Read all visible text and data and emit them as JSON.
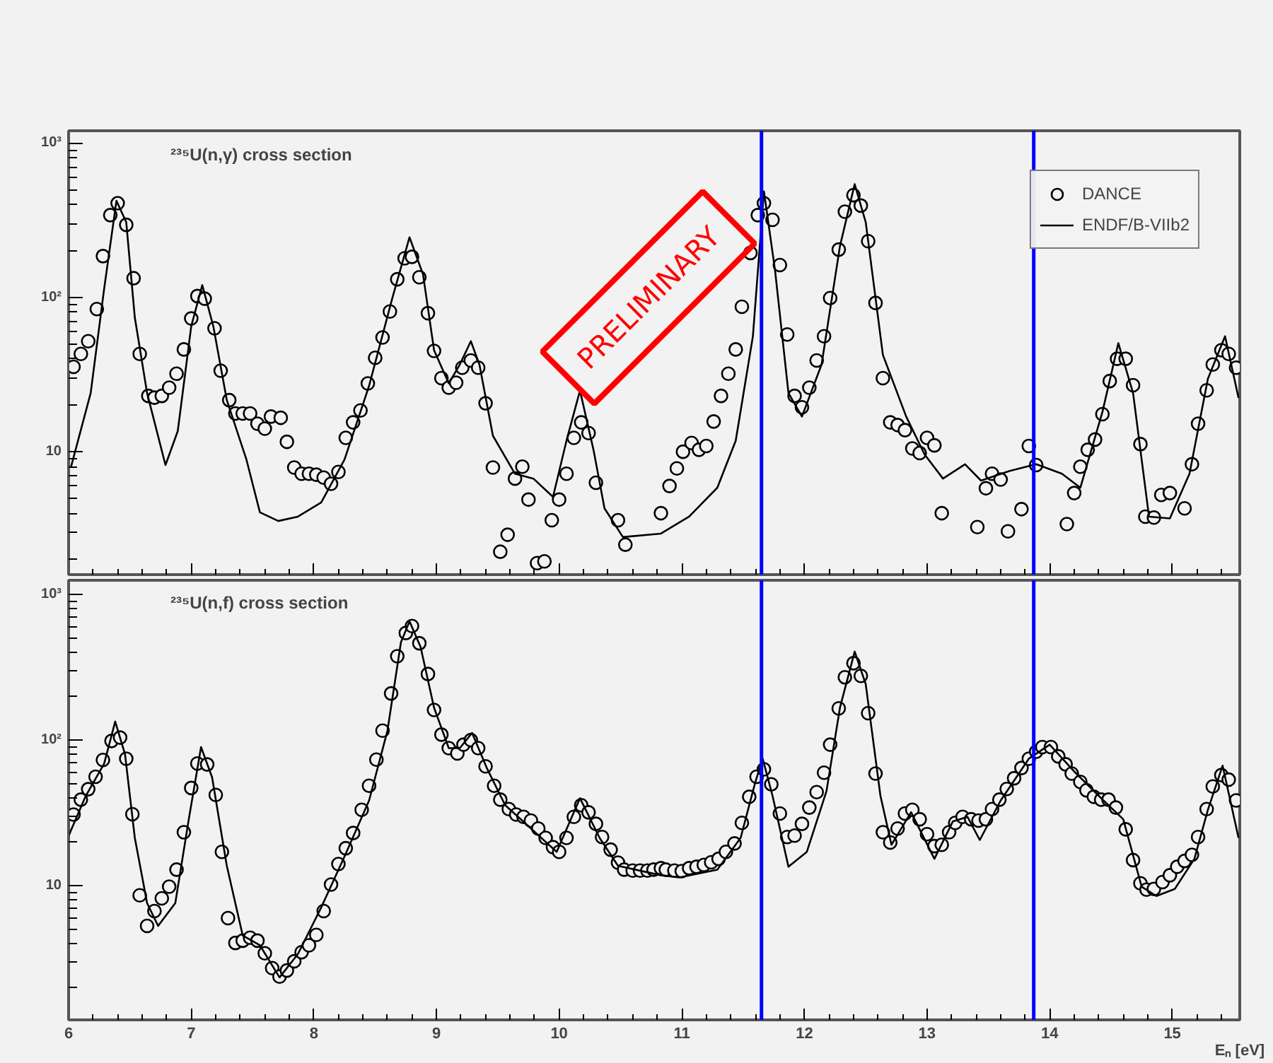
{
  "chart_data": [
    {
      "type": "scatter",
      "title": "²³⁵U(n,γ) cross section",
      "xlim": [
        6,
        15.55
      ],
      "xticks": [
        6,
        7,
        8,
        9,
        10,
        11,
        12,
        13,
        14,
        15
      ],
      "ylim": [
        1.6,
        1200
      ],
      "yticks": [
        {
          "value": 10,
          "label": "10"
        },
        {
          "value": 100,
          "label": "10²"
        },
        {
          "value": 1000,
          "label": "10³"
        }
      ],
      "log": true,
      "tick_labels": "y",
      "legend": "top right",
      "grid": false,
      "annotations": [
        "PRELIMINARY"
      ],
      "ref_lines": [
        {
          "axis": "x",
          "value": 11.65,
          "label": null,
          "color": "#0000ff"
        },
        {
          "axis": "x",
          "value": 13.87,
          "label": null,
          "color": "#0000ff"
        }
      ],
      "series": [
        {
          "name": "DANCE",
          "marker": "circle",
          "color": "#000000",
          "x": [
            6.04,
            6.1,
            6.16,
            6.23,
            6.28,
            6.34,
            6.4,
            6.47,
            6.53,
            6.58,
            6.65,
            6.7,
            6.76,
            6.82,
            6.88,
            6.94,
            7.0,
            7.05,
            7.11,
            7.19,
            7.24,
            7.31,
            7.36,
            7.42,
            7.48,
            7.54,
            7.6,
            7.65,
            7.73,
            7.78,
            7.84,
            7.9,
            7.96,
            8.02,
            8.08,
            8.14,
            8.2,
            8.26,
            8.32,
            8.38,
            8.44,
            8.5,
            8.56,
            8.62,
            8.68,
            8.74,
            8.8,
            8.86,
            8.93,
            8.98,
            9.04,
            9.1,
            9.16,
            9.21,
            9.28,
            9.34,
            9.4,
            9.46,
            9.52,
            9.58,
            9.64,
            9.7,
            9.75,
            9.82,
            9.88,
            9.94,
            10.0,
            10.06,
            10.12,
            10.18,
            10.24,
            10.3,
            10.48,
            10.54,
            10.83,
            10.9,
            10.96,
            11.01,
            11.08,
            11.14,
            11.2,
            11.26,
            11.32,
            11.38,
            11.44,
            11.49,
            11.56,
            11.62,
            11.67,
            11.74,
            11.8,
            11.86,
            11.92,
            11.98,
            12.04,
            12.1,
            12.16,
            12.21,
            12.28,
            12.33,
            12.4,
            12.46,
            12.52,
            12.58,
            12.64,
            12.7,
            12.76,
            12.82,
            12.88,
            12.94,
            13.0,
            13.06,
            13.12,
            13.41,
            13.48,
            13.53,
            13.6,
            13.66,
            13.77,
            13.83,
            13.89,
            14.14,
            14.2,
            14.25,
            14.31,
            14.37,
            14.43,
            14.49,
            14.55,
            14.62,
            14.68,
            14.74,
            14.78,
            14.85,
            14.91,
            14.98,
            15.1,
            15.16,
            15.21,
            15.28,
            15.33,
            15.4,
            15.46,
            15.52
          ],
          "values": [
            35.5,
            43,
            52,
            84,
            185,
            341,
            407,
            295,
            133,
            43,
            23,
            22.4,
            23,
            26,
            32,
            46,
            73,
            102,
            98,
            63,
            33.5,
            21.6,
            17.7,
            17.7,
            17.7,
            15.2,
            14.1,
            16.9,
            16.6,
            11.6,
            7.9,
            7.2,
            7.2,
            7.1,
            6.8,
            6.2,
            7.4,
            12.3,
            15.5,
            18.5,
            27.7,
            40.6,
            55,
            81,
            131,
            179,
            183,
            135,
            79,
            45,
            30,
            26,
            28,
            35,
            39,
            35,
            20.6,
            7.9,
            2.25,
            2.9,
            6.7,
            8.0,
            4.9,
            1.9,
            1.95,
            3.6,
            4.9,
            7.2,
            12.3,
            15.5,
            13.2,
            6.3,
            3.6,
            2.5,
            4.0,
            6.0,
            7.8,
            10,
            11.4,
            10.3,
            10.9,
            15.7,
            23,
            32,
            46,
            87,
            194,
            341,
            407,
            318,
            162,
            57.5,
            23,
            19.4,
            26,
            39,
            56,
            99,
            204,
            359,
            459,
            393,
            231,
            92,
            30,
            15.5,
            14.9,
            13.8,
            10.5,
            9.8,
            12.3,
            11,
            4.0,
            3.25,
            5.8,
            7.2,
            6.6,
            3.05,
            4.25,
            10.9,
            8.2,
            3.4,
            5.4,
            8.0,
            10.3,
            12,
            17.5,
            28.7,
            40,
            40,
            27,
            11.2,
            3.8,
            3.75,
            5.25,
            5.4,
            4.3,
            8.3,
            15.2,
            25,
            36.7,
            45.5,
            43,
            35
          ]
        },
        {
          "name": "ENDF/B-VIIb2",
          "type": "line",
          "color": "#000000",
          "x": [
            6.02,
            6.18,
            6.29,
            6.39,
            6.47,
            6.54,
            6.64,
            6.79,
            6.89,
            7.0,
            7.09,
            7.18,
            7.29,
            7.45,
            7.56,
            7.71,
            7.87,
            8.06,
            8.25,
            8.45,
            8.64,
            8.78,
            8.89,
            8.98,
            9.1,
            9.19,
            9.28,
            9.35,
            9.46,
            9.64,
            9.79,
            9.95,
            10.06,
            10.17,
            10.28,
            10.37,
            10.52,
            10.83,
            11.06,
            11.29,
            11.44,
            11.58,
            11.67,
            11.76,
            11.87,
            11.98,
            12.14,
            12.29,
            12.41,
            12.5,
            12.64,
            12.83,
            12.98,
            13.13,
            13.31,
            13.44,
            13.67,
            13.89,
            14.1,
            14.25,
            14.43,
            14.56,
            14.68,
            14.81,
            14.98,
            15.14,
            15.29,
            15.43,
            15.54
          ],
          "values": [
            8.0,
            24,
            114,
            422,
            307,
            74,
            24,
            8.2,
            13.6,
            65,
            120,
            65,
            21.6,
            8.9,
            4.05,
            3.56,
            3.8,
            4.7,
            8.9,
            26.7,
            99,
            245,
            141,
            45.5,
            27.7,
            36.7,
            52,
            36.7,
            12.7,
            7.2,
            6.7,
            5.1,
            11.8,
            24.9,
            10.3,
            4.3,
            2.8,
            2.95,
            3.8,
            5.85,
            11.8,
            56,
            486,
            151,
            24,
            16.9,
            36.7,
            215,
            541,
            307,
            42.4,
            16.9,
            9.6,
            6.7,
            8.3,
            6.5,
            7.5,
            8.3,
            7.2,
            5.85,
            18.1,
            50.5,
            24,
            3.8,
            3.7,
            7.2,
            29.7,
            56,
            22.3
          ]
        }
      ]
    },
    {
      "type": "scatter",
      "title": "²³⁵U(n,f) cross section",
      "xlabel": "Eₙ [eV]",
      "xlim": [
        6,
        15.55
      ],
      "xticks": [
        6,
        7,
        8,
        9,
        10,
        11,
        12,
        13,
        14,
        15
      ],
      "ylim": [
        1.2,
        1250
      ],
      "yticks": [
        {
          "value": 10,
          "label": "10"
        },
        {
          "value": 100,
          "label": "10²"
        },
        {
          "value": 1000,
          "label": "10³"
        }
      ],
      "log": true,
      "grid": false,
      "ref_lines": [
        {
          "axis": "x",
          "value": 11.65,
          "label": null,
          "color": "#0000ff"
        },
        {
          "axis": "x",
          "value": 13.87,
          "label": null,
          "color": "#0000ff"
        }
      ],
      "series": [
        {
          "marker": "circle",
          "color": "#000000",
          "x": [
            6.04,
            6.1,
            6.16,
            6.22,
            6.28,
            6.35,
            6.42,
            6.47,
            6.52,
            6.58,
            6.64,
            6.7,
            6.76,
            6.82,
            6.88,
            6.94,
            7.0,
            7.05,
            7.13,
            7.2,
            7.25,
            7.3,
            7.36,
            7.42,
            7.48,
            7.54,
            7.6,
            7.66,
            7.72,
            7.78,
            7.84,
            7.9,
            7.96,
            8.02,
            8.08,
            8.14,
            8.2,
            8.26,
            8.32,
            8.39,
            8.45,
            8.51,
            8.56,
            8.63,
            8.68,
            8.75,
            8.8,
            8.86,
            8.93,
            8.98,
            9.04,
            9.1,
            9.17,
            9.22,
            9.28,
            9.34,
            9.4,
            9.47,
            9.52,
            9.59,
            9.65,
            9.71,
            9.77,
            9.83,
            9.89,
            9.95,
            10.0,
            10.06,
            10.12,
            10.18,
            10.24,
            10.3,
            10.35,
            10.42,
            10.48,
            10.53,
            10.6,
            10.66,
            10.72,
            10.77,
            10.83,
            10.87,
            10.94,
            11.0,
            11.06,
            11.12,
            11.18,
            11.24,
            11.3,
            11.36,
            11.43,
            11.49,
            11.55,
            11.61,
            11.67,
            11.73,
            11.8,
            11.86,
            11.92,
            11.98,
            12.04,
            12.1,
            12.16,
            12.21,
            12.28,
            12.33,
            12.4,
            12.46,
            12.52,
            12.58,
            12.64,
            12.7,
            12.76,
            12.82,
            12.88,
            12.94,
            13.0,
            13.06,
            13.12,
            13.18,
            13.23,
            13.29,
            13.36,
            13.42,
            13.48,
            13.53,
            13.59,
            13.65,
            13.71,
            13.77,
            13.83,
            13.89,
            13.94,
            14.01,
            14.07,
            14.13,
            14.18,
            14.25,
            14.3,
            14.36,
            14.42,
            14.48,
            14.54,
            14.62,
            14.68,
            14.74,
            14.79,
            14.85,
            14.92,
            14.98,
            15.04,
            15.1,
            15.16,
            15.21,
            15.28,
            15.33,
            15.4,
            15.46,
            15.52
          ],
          "values": [
            30.8,
            39,
            46,
            56,
            73,
            98.6,
            104,
            74.5,
            31,
            8.6,
            5.3,
            6.7,
            8.2,
            9.85,
            12.9,
            23.3,
            46.9,
            69,
            68,
            42,
            17.1,
            6.0,
            4.05,
            4.2,
            4.4,
            4.2,
            3.44,
            2.72,
            2.38,
            2.62,
            3.03,
            3.5,
            3.9,
            4.6,
            6.7,
            10.2,
            14.1,
            18.1,
            23,
            33.2,
            48.6,
            73.4,
            116,
            209,
            376,
            543,
            606,
            462,
            284,
            161,
            109,
            88,
            81,
            93,
            100,
            88,
            66,
            48.6,
            39,
            33.6,
            30.8,
            29.7,
            28,
            24.7,
            21.3,
            18.4,
            17.1,
            21.3,
            29.7,
            35.7,
            31.9,
            26.6,
            21.6,
            17.7,
            14.4,
            12.9,
            12.7,
            12.7,
            12.7,
            12.9,
            13.2,
            12.9,
            12.7,
            12.6,
            13.2,
            13.5,
            13.9,
            14.5,
            15.3,
            17.1,
            19.5,
            27,
            40.8,
            56,
            63,
            49.7,
            31.3,
            21.6,
            22.1,
            26.6,
            34.4,
            43.9,
            59.7,
            93,
            165,
            270,
            337,
            276,
            153,
            58.9,
            23.3,
            19.8,
            24.7,
            31.3,
            33.2,
            28.6,
            22.6,
            18.7,
            19.1,
            23.3,
            27,
            29.7,
            28.6,
            28,
            28.6,
            33.6,
            39,
            46.2,
            54.7,
            64.3,
            74.5,
            83.2,
            89.5,
            89.5,
            77.3,
            68.2,
            58.9,
            51.6,
            45.2,
            40.8,
            39,
            39,
            34.4,
            24.4,
            15,
            10.4,
            9.4,
            9.5,
            10.6,
            11.8,
            13.5,
            14.8,
            16.3,
            21.6,
            33.6,
            48,
            57.5,
            53.5,
            38.5
          ]
        },
        {
          "type": "line",
          "color": "#000000",
          "x": [
            6.0,
            6.14,
            6.29,
            6.38,
            6.46,
            6.54,
            6.64,
            6.73,
            6.87,
            6.98,
            7.08,
            7.17,
            7.29,
            7.42,
            7.56,
            7.72,
            7.87,
            8.06,
            8.25,
            8.45,
            8.6,
            8.71,
            8.78,
            8.87,
            8.98,
            9.1,
            9.19,
            9.29,
            9.41,
            9.56,
            9.75,
            9.98,
            10.17,
            10.33,
            10.48,
            10.83,
            10.98,
            11.29,
            11.48,
            11.6,
            11.66,
            11.74,
            11.87,
            12.02,
            12.18,
            12.29,
            12.41,
            12.5,
            12.62,
            12.71,
            12.87,
            13.06,
            13.21,
            13.33,
            13.43,
            13.6,
            13.83,
            14.0,
            14.21,
            14.44,
            14.6,
            14.75,
            14.87,
            15.02,
            15.18,
            15.29,
            15.41,
            15.54
          ],
          "values": [
            22,
            41.4,
            69,
            134,
            80,
            21.3,
            7.6,
            5.3,
            7.6,
            28.6,
            89.5,
            55.5,
            13.7,
            4.55,
            3.9,
            2.35,
            3.4,
            7.1,
            15.9,
            38.4,
            116,
            469,
            653,
            436,
            167,
            88,
            88,
            112,
            64.3,
            35.7,
            25.6,
            17.1,
            39.9,
            21.3,
            13.7,
            11.8,
            11.4,
            12.9,
            21.3,
            51.6,
            74.5,
            41.4,
            13.5,
            17.1,
            44.6,
            167,
            405,
            242,
            41.4,
            19.1,
            32,
            15.3,
            27.6,
            29.7,
            20.6,
            38.4,
            74.5,
            93,
            59.7,
            38.4,
            28.6,
            9.85,
            8.5,
            9.5,
            15.3,
            33.2,
            66.7,
            21.3
          ]
        }
      ]
    }
  ]
}
